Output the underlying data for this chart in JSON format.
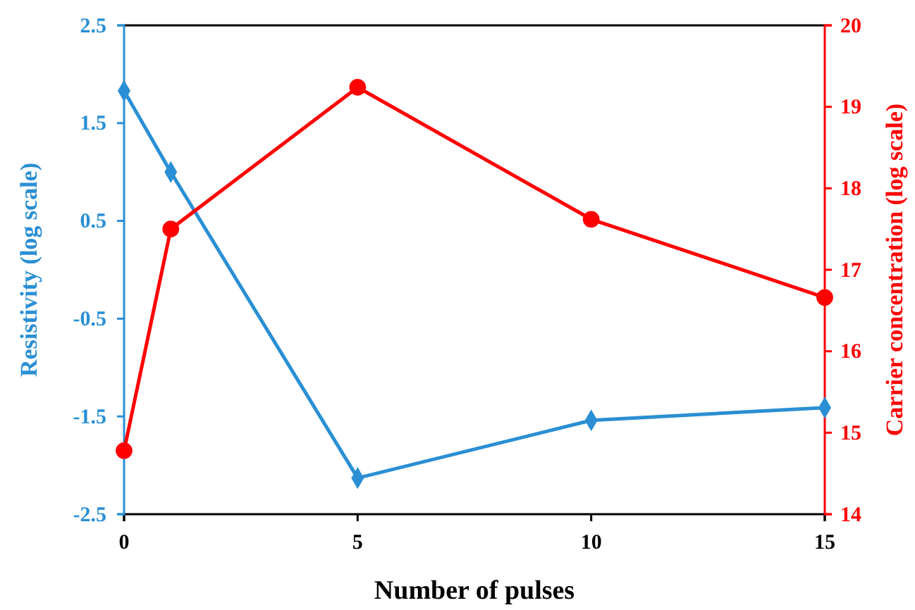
{
  "chart_data": {
    "type": "line",
    "xlabel": "Number of pulses",
    "ylabel": "Resistivity (log scale)",
    "y2label": "Carrier concentration (log scale)",
    "x": [
      0,
      1,
      5,
      10,
      15
    ],
    "xlim": [
      0,
      15
    ],
    "xticks": [
      0,
      5,
      10,
      15
    ],
    "ylim": [
      -2.5,
      2.5
    ],
    "yticks": [
      {
        "value": -2.5,
        "label": "-2.5"
      },
      {
        "value": -1.5,
        "label": "-1.5"
      },
      {
        "value": -0.5,
        "label": "-0.5"
      },
      0.5,
      1.5,
      2.5
    ],
    "y2lim": [
      14,
      20
    ],
    "y2ticks": [
      14,
      15,
      16,
      17,
      18,
      19,
      20
    ],
    "line_style": "solid",
    "series": [
      {
        "color": "#2a8fd4",
        "marker": "diamond",
        "values": [
          1.83,
          1.0,
          -2.13,
          -1.54,
          -1.41
        ]
      },
      {
        "color": "#ff0000",
        "marker": "circle",
        "axis": "y2",
        "values": [
          14.78,
          17.5,
          19.24,
          17.62,
          16.66
        ]
      }
    ]
  }
}
